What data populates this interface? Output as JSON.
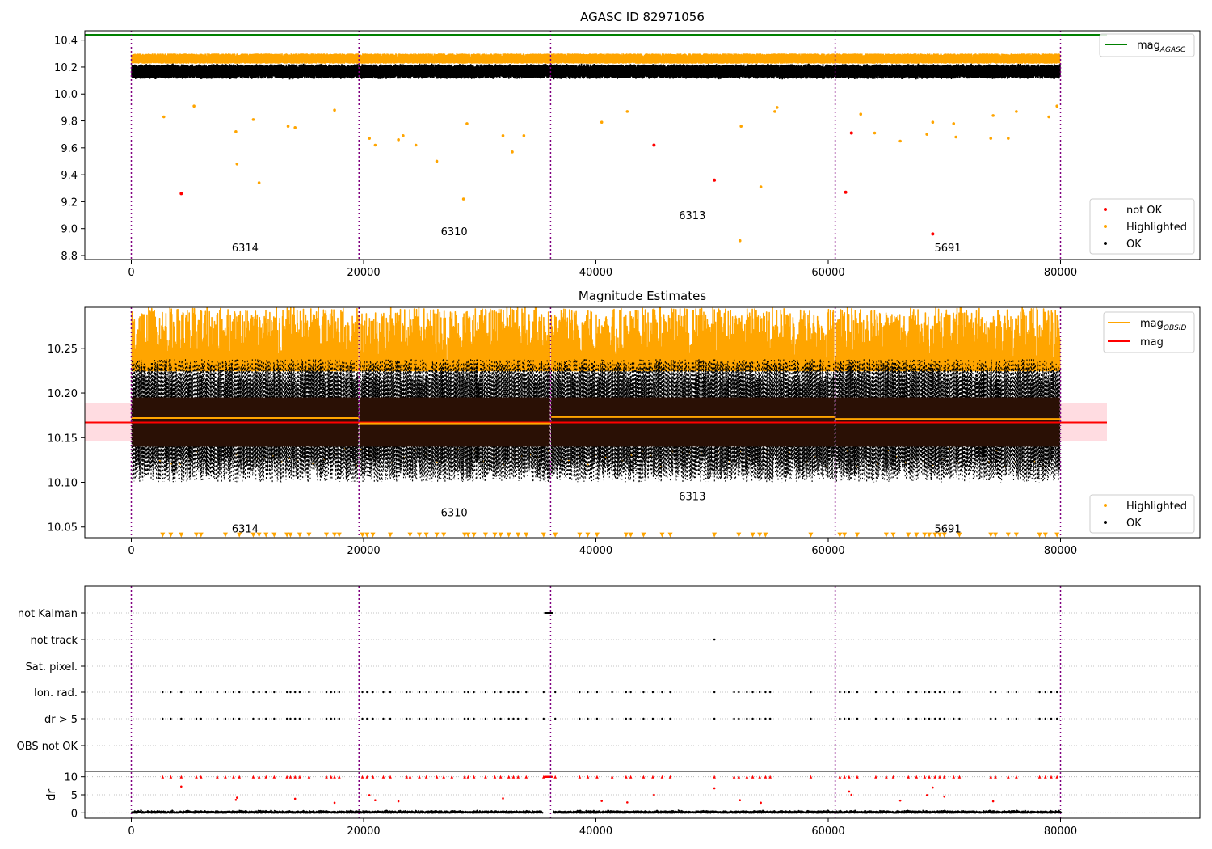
{
  "colors": {
    "ok": "#000000",
    "highlighted": "#ffa500",
    "not_ok": "#ff0000",
    "mag_agasc_line": "#008000",
    "mag_obsid_line": "#ffa500",
    "mag_line": "#ff0000",
    "mag_band": "#ffc0c8",
    "obsid_boundary": "#800080",
    "gridline": "#b0b0b0"
  },
  "chart_data": [
    {
      "type": "scatter",
      "title": "AGASC ID 82971056",
      "xlim": [
        -4000,
        92000
      ],
      "ylim": [
        8.77,
        10.47
      ],
      "xticks": [
        0,
        20000,
        40000,
        60000,
        80000
      ],
      "yticks": [
        8.8,
        9.0,
        9.2,
        9.4,
        9.6,
        9.8,
        10.0,
        10.2,
        10.4
      ],
      "ytick_labels": [
        "8.8",
        "9.0",
        "9.2",
        "9.4",
        "9.6",
        "9.8",
        "10.0",
        "10.2",
        "10.4"
      ],
      "obsid_boundaries": [
        0,
        19600,
        36100,
        60600,
        80000
      ],
      "obsids": [
        {
          "label": "6314",
          "x": 9800,
          "y": 8.83
        },
        {
          "label": "6310",
          "x": 27800,
          "y": 8.95
        },
        {
          "label": "6313",
          "x": 48300,
          "y": 9.07
        },
        {
          "label": "5691",
          "x": 70300,
          "y": 8.83
        }
      ],
      "mag_agasc": 10.44,
      "ok_band": {
        "center": 10.167,
        "half_width": 0.05
      },
      "highlighted_band": {
        "low": 10.225,
        "high": 10.3
      },
      "not_ok_points": [
        [
          4300,
          9.26
        ],
        [
          45000,
          9.62
        ],
        [
          50200,
          9.36
        ],
        [
          61500,
          9.27
        ],
        [
          62000,
          9.71
        ],
        [
          69000,
          8.96
        ]
      ],
      "highlighted_outliers": [
        [
          2800,
          9.83
        ],
        [
          5400,
          9.91
        ],
        [
          9000,
          9.72
        ],
        [
          9100,
          9.48
        ],
        [
          10500,
          9.81
        ],
        [
          11000,
          9.34
        ],
        [
          13500,
          9.76
        ],
        [
          14100,
          9.75
        ],
        [
          17500,
          9.88
        ],
        [
          20500,
          9.67
        ],
        [
          21000,
          9.62
        ],
        [
          23000,
          9.66
        ],
        [
          23400,
          9.69
        ],
        [
          24500,
          9.62
        ],
        [
          26300,
          9.5
        ],
        [
          28600,
          9.22
        ],
        [
          28900,
          9.78
        ],
        [
          32000,
          9.69
        ],
        [
          32800,
          9.57
        ],
        [
          33800,
          9.69
        ],
        [
          40500,
          9.79
        ],
        [
          42700,
          9.87
        ],
        [
          52500,
          9.76
        ],
        [
          52400,
          8.91
        ],
        [
          54200,
          9.31
        ],
        [
          55400,
          9.87
        ],
        [
          55600,
          9.9
        ],
        [
          62800,
          9.85
        ],
        [
          64000,
          9.71
        ],
        [
          66200,
          9.65
        ],
        [
          68500,
          9.7
        ],
        [
          69000,
          9.79
        ],
        [
          70800,
          9.78
        ],
        [
          71000,
          9.68
        ],
        [
          74000,
          9.67
        ],
        [
          74200,
          9.84
        ],
        [
          75500,
          9.67
        ],
        [
          76200,
          9.87
        ],
        [
          79000,
          9.83
        ],
        [
          79700,
          9.91
        ]
      ],
      "legend": [
        {
          "label": "mag",
          "sub": "AGASC",
          "marker": "line",
          "color": "#008000"
        }
      ],
      "legend2": [
        {
          "label": "not OK",
          "marker": "dot",
          "color": "#ff0000"
        },
        {
          "label": "Highlighted",
          "marker": "dot",
          "color": "#ffa500"
        },
        {
          "label": "OK",
          "marker": "dot",
          "color": "#000000"
        }
      ]
    },
    {
      "type": "scatter",
      "title": "Magnitude Estimates",
      "xlim": [
        -4000,
        92000
      ],
      "ylim": [
        10.038,
        10.296
      ],
      "xticks": [
        0,
        20000,
        40000,
        60000,
        80000
      ],
      "yticks": [
        10.05,
        10.1,
        10.15,
        10.2,
        10.25
      ],
      "ytick_labels": [
        "10.05",
        "10.10",
        "10.15",
        "10.20",
        "10.25"
      ],
      "obsid_boundaries": [
        0,
        19600,
        36100,
        60600,
        80000
      ],
      "obsids": [
        {
          "label": "6314",
          "x": 9800,
          "y": 10.044
        },
        {
          "label": "6310",
          "x": 27800,
          "y": 10.062
        },
        {
          "label": "6313",
          "x": 48300,
          "y": 10.08
        },
        {
          "label": "5691",
          "x": 70300,
          "y": 10.044
        }
      ],
      "mag": 10.167,
      "mag_band": [
        10.146,
        10.189
      ],
      "mag_obsid_segments": [
        {
          "x0": 0,
          "x1": 19600,
          "y": 10.172
        },
        {
          "x0": 19600,
          "x1": 36100,
          "y": 10.166
        },
        {
          "x0": 36100,
          "x1": 60600,
          "y": 10.173
        },
        {
          "x0": 60600,
          "x1": 80000,
          "y": 10.171
        }
      ],
      "ok_core_band": [
        10.14,
        10.195
      ],
      "ok_scatter_band": [
        10.1,
        10.238
      ],
      "highlighted_band": [
        10.215,
        10.296
      ],
      "clipped_marker_y": 10.041,
      "legend": [
        {
          "label": "mag",
          "sub": "OBSID",
          "marker": "line",
          "color": "#ffa500"
        },
        {
          "label": "mag",
          "marker": "line",
          "color": "#ff0000"
        }
      ],
      "legend2": [
        {
          "label": "Highlighted",
          "marker": "dot",
          "color": "#ffa500"
        },
        {
          "label": "OK",
          "marker": "dot",
          "color": "#000000"
        }
      ]
    },
    {
      "type": "scatter",
      "title": "",
      "xlim": [
        -4000,
        92000
      ],
      "xticks": [
        0,
        20000,
        40000,
        60000,
        80000
      ],
      "flag_rows": [
        "not Kalman",
        "not track",
        "Sat. pixel.",
        "Ion. rad.",
        "dr > 5",
        "OBS not OK"
      ],
      "obsid_boundaries": [
        0,
        19600,
        36100,
        60600,
        80000
      ],
      "not_kalman_range": [
        35600,
        36200
      ],
      "not_track_points": [
        50200
      ],
      "ion_rad_times": [
        2700,
        3400,
        4300,
        5600,
        6000,
        7400,
        8100,
        8800,
        9300,
        10500,
        11000,
        11600,
        12300,
        13400,
        13700,
        14100,
        14500,
        15300,
        16800,
        17200,
        17500,
        17900,
        19900,
        20300,
        20800,
        21700,
        22300,
        23700,
        24000,
        24800,
        25400,
        26300,
        26900,
        27600,
        28700,
        29000,
        29500,
        30500,
        31300,
        31800,
        32500,
        32900,
        33300,
        34000,
        35500,
        36500,
        38600,
        39300,
        40100,
        41400,
        42600,
        43000,
        44100,
        44900,
        45700,
        46400,
        50200,
        51900,
        52300,
        53000,
        53500,
        54100,
        54600,
        55000,
        58500,
        61000,
        61400,
        61800,
        62500,
        64100,
        65000,
        65600,
        66900,
        67600,
        68300,
        68700,
        69200,
        69600,
        70000,
        70800,
        71300,
        74000,
        74400,
        75500,
        76200,
        78200,
        78700,
        79200,
        79700
      ],
      "dr_label": "dr",
      "dr_ylim": [
        -1.5,
        11.5
      ],
      "dr_yticks": [
        0,
        5,
        10
      ],
      "dr_big_points": [
        [
          4300,
          7.3
        ],
        [
          9000,
          3.6
        ],
        [
          9100,
          4.2
        ],
        [
          14100,
          3.9
        ],
        [
          17500,
          2.8
        ],
        [
          20500,
          4.9
        ],
        [
          21000,
          3.5
        ],
        [
          23000,
          3.2
        ],
        [
          32000,
          4.0
        ],
        [
          40500,
          3.3
        ],
        [
          42700,
          2.9
        ],
        [
          45000,
          5.0
        ],
        [
          50200,
          6.8
        ],
        [
          52400,
          3.5
        ],
        [
          54200,
          2.8
        ],
        [
          61800,
          5.9
        ],
        [
          62000,
          5.0
        ],
        [
          66200,
          3.4
        ],
        [
          68500,
          4.9
        ],
        [
          69000,
          7.0
        ],
        [
          70000,
          4.5
        ],
        [
          74200,
          3.2
        ]
      ],
      "dr_threshold": 10
    }
  ]
}
